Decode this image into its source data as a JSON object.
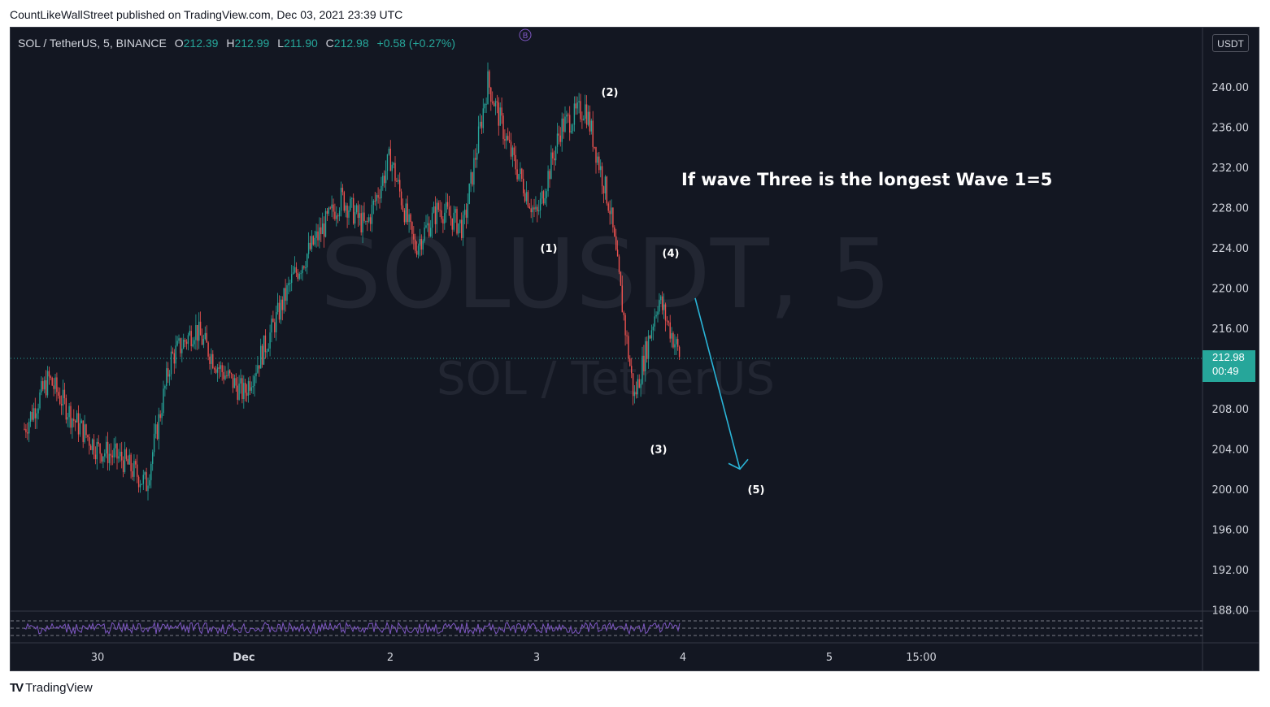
{
  "header": {
    "published_by": "CountLikeWallStreet published on TradingView.com, Dec 03, 2021 23:39 UTC"
  },
  "symbol": {
    "title": "SOL / TetherUS, 5, BINANCE",
    "o_label": "O",
    "o": "212.39",
    "h_label": "H",
    "h": "212.99",
    "l_label": "L",
    "l": "211.90",
    "c_label": "C",
    "c": "212.98",
    "change": "+0.58 (+0.27%)"
  },
  "currency_button": "USDT",
  "watermark": {
    "ticker": "SOLUSDT, 5",
    "name": "SOL / TetherUS"
  },
  "last_price": {
    "price": "212.98",
    "countdown": "00:49"
  },
  "annotation_text": "If wave Three is the longest Wave 1=5",
  "colors": {
    "background": "#131722",
    "up": "#26a69a",
    "down": "#ef5350",
    "arrow": "#2ab5d8",
    "rsi": "#7e57c2"
  },
  "chart_data": {
    "type": "line",
    "title": "SOL / TetherUS, 5, BINANCE",
    "ylabel": "USDT",
    "ylim": [
      188,
      244
    ],
    "y_ticks": [
      "240.00",
      "236.00",
      "232.00",
      "228.00",
      "224.00",
      "220.00",
      "216.00",
      "212.00",
      "208.00",
      "204.00",
      "200.00",
      "196.00",
      "192.00",
      "188.00"
    ],
    "x_ticks": [
      "30",
      "Dec",
      "2",
      "3",
      "4",
      "5",
      "15:00"
    ],
    "last_price": 212.98,
    "series": [
      {
        "x": [
          "Nov 29 12:00",
          "Nov 29 16:00",
          "Nov 29 20:00",
          "Nov 30 00:00",
          "Nov 30 04:00",
          "Nov 30 08:00",
          "Nov 30 12:00",
          "Nov 30 16:00",
          "Nov 30 20:00",
          "Dec 1 00:00",
          "Dec 1 04:00",
          "Dec 1 08:00",
          "Dec 1 12:00",
          "Dec 1 16:00",
          "Dec 1 20:00",
          "Dec 2 00:00",
          "Dec 2 04:00",
          "Dec 2 08:00",
          "Dec 2 12:00",
          "Dec 2 16:00",
          "Dec 2 20:00",
          "Dec 3 00:00",
          "Dec 3 04:00",
          "Dec 3 08:00",
          "Dec 3 12:00",
          "Dec 3 16:00",
          "Dec 3 20:00",
          "Dec 3 23:39"
        ],
        "values": [
          206,
          211,
          207,
          204,
          203,
          200.5,
          213,
          216,
          212,
          209.5,
          215,
          221,
          225,
          229,
          226,
          233,
          224,
          228,
          226,
          240.5,
          233,
          227,
          236,
          238,
          228,
          209,
          219,
          212.98
        ]
      }
    ],
    "wave_labels": [
      {
        "label": "(1)",
        "x": "Dec 3 02:00",
        "y": 224
      },
      {
        "label": "(2)",
        "x": "Dec 3 12:00",
        "y": 239.5
      },
      {
        "label": "(3)",
        "x": "Dec 3 20:00",
        "y": 204
      },
      {
        "label": "(4)",
        "x": "Dec 3 22:00",
        "y": 223.5
      },
      {
        "label": "(5)",
        "x": "Dec 4 12:00",
        "y": 200
      }
    ],
    "projection_arrow": {
      "from": {
        "x": "Dec 4 02:00",
        "y": 219
      },
      "to": {
        "x": "Dec 4 12:00",
        "y": 202
      }
    },
    "event_marker": "B",
    "indicator": "RSI"
  },
  "footer": {
    "logo": "TV",
    "brand": "TradingView"
  }
}
